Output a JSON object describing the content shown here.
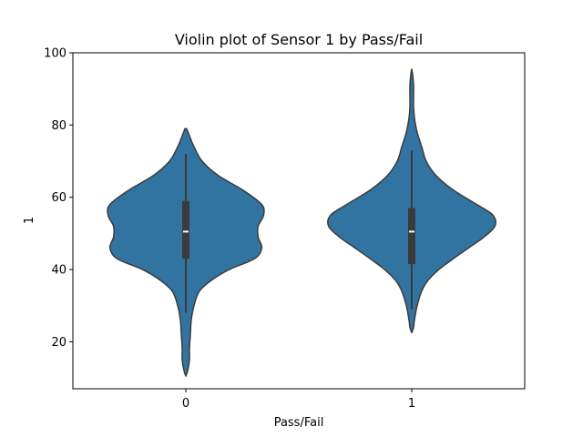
{
  "chart_data": {
    "type": "violin",
    "title": "Violin plot of Sensor 1 by Pass/Fail",
    "xlabel": "Pass/Fail",
    "ylabel": "1",
    "categories": [
      "0",
      "1"
    ],
    "ylim": [
      7,
      100
    ],
    "yticks": [
      20,
      40,
      60,
      80,
      100
    ],
    "grid": false,
    "fill_color": "#3274a1",
    "edge_color": "#3b3b3b",
    "violins": [
      {
        "category": "0",
        "min": 10.5,
        "max": 79,
        "q1": 43,
        "median": 50.5,
        "q3": 59,
        "whisker_low": 28,
        "whisker_high": 72,
        "density": [
          [
            79,
            0.01
          ],
          [
            77,
            0.04
          ],
          [
            74,
            0.09
          ],
          [
            70,
            0.18
          ],
          [
            66,
            0.36
          ],
          [
            62,
            0.63
          ],
          [
            58,
            0.84
          ],
          [
            55,
            0.86
          ],
          [
            52,
            0.8
          ],
          [
            49,
            0.8
          ],
          [
            46,
            0.84
          ],
          [
            43,
            0.76
          ],
          [
            40,
            0.48
          ],
          [
            37,
            0.28
          ],
          [
            34,
            0.15
          ],
          [
            30,
            0.09
          ],
          [
            26,
            0.06
          ],
          [
            22,
            0.05
          ],
          [
            18,
            0.04
          ],
          [
            15,
            0.04
          ],
          [
            12,
            0.02
          ],
          [
            10.5,
            0.0
          ]
        ]
      },
      {
        "category": "1",
        "min": 22.5,
        "max": 95.5,
        "q1": 41.5,
        "median": 50.5,
        "q3": 57,
        "whisker_low": 29,
        "whisker_high": 73,
        "density": [
          [
            95.5,
            0.0
          ],
          [
            94,
            0.01
          ],
          [
            91,
            0.02
          ],
          [
            88,
            0.02
          ],
          [
            85,
            0.02
          ],
          [
            82,
            0.03
          ],
          [
            78,
            0.06
          ],
          [
            74,
            0.11
          ],
          [
            70,
            0.16
          ],
          [
            66,
            0.27
          ],
          [
            62,
            0.46
          ],
          [
            58,
            0.72
          ],
          [
            55,
            0.9
          ],
          [
            52,
            0.92
          ],
          [
            49,
            0.8
          ],
          [
            46,
            0.63
          ],
          [
            43,
            0.46
          ],
          [
            40,
            0.3
          ],
          [
            37,
            0.18
          ],
          [
            34,
            0.11
          ],
          [
            30,
            0.06
          ],
          [
            26,
            0.03
          ],
          [
            24,
            0.02
          ],
          [
            22.5,
            0.0
          ]
        ]
      }
    ]
  }
}
